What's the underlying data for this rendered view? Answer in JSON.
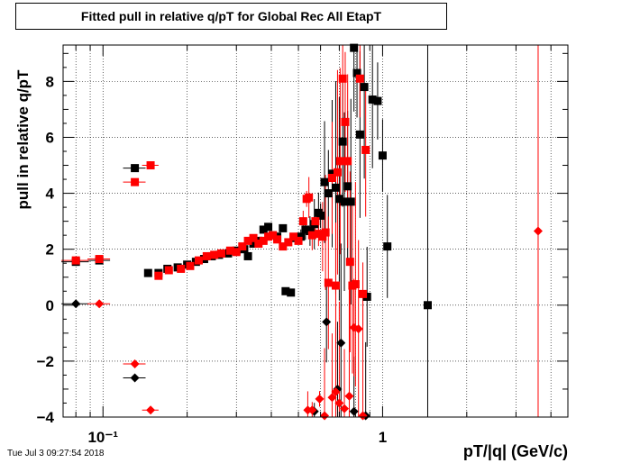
{
  "chart_data": {
    "type": "scatter",
    "title": "Fitted pull in relative q/pT for Global Rec All EtapT",
    "xlabel": "pT/|q| (GeV/c)",
    "ylabel": "pull in relative q/pT",
    "x_scale": "log",
    "xlim": [
      0.072,
      4.6
    ],
    "ylim": [
      -4,
      9.3
    ],
    "grid": true,
    "x_tick_labels": [
      "10⁻¹",
      "1"
    ],
    "y_tick_labels": [
      "−4",
      "−2",
      "0",
      "2",
      "4",
      "6",
      "8"
    ],
    "y_ticks": [
      -4,
      -2,
      0,
      2,
      4,
      6,
      8
    ],
    "series": [
      {
        "marker": "square",
        "color": "#000000",
        "points": [
          {
            "x": 0.08,
            "y": 1.55,
            "xerr": 0.009
          },
          {
            "x": 0.097,
            "y": 1.6,
            "xerr": 0.009
          },
          {
            "x": 0.13,
            "y": 4.9,
            "xerr": 0.012
          },
          {
            "x": 0.145,
            "y": 1.15
          },
          {
            "x": 0.158,
            "y": 1.15
          },
          {
            "x": 0.17,
            "y": 1.3
          },
          {
            "x": 0.185,
            "y": 1.35
          },
          {
            "x": 0.2,
            "y": 1.45
          },
          {
            "x": 0.215,
            "y": 1.55
          },
          {
            "x": 0.23,
            "y": 1.65
          },
          {
            "x": 0.245,
            "y": 1.75
          },
          {
            "x": 0.26,
            "y": 1.8
          },
          {
            "x": 0.28,
            "y": 1.85
          },
          {
            "x": 0.3,
            "y": 1.95
          },
          {
            "x": 0.32,
            "y": 2.0
          },
          {
            "x": 0.33,
            "y": 1.75
          },
          {
            "x": 0.345,
            "y": 2.2
          },
          {
            "x": 0.36,
            "y": 2.3
          },
          {
            "x": 0.375,
            "y": 2.7
          },
          {
            "x": 0.39,
            "y": 2.8
          },
          {
            "x": 0.405,
            "y": 2.5
          },
          {
            "x": 0.42,
            "y": 2.45
          },
          {
            "x": 0.44,
            "y": 2.75
          },
          {
            "x": 0.45,
            "y": 0.5
          },
          {
            "x": 0.47,
            "y": 0.45
          },
          {
            "x": 0.49,
            "y": 2.4
          },
          {
            "x": 0.51,
            "y": 2.45
          },
          {
            "x": 0.53,
            "y": 2.7
          },
          {
            "x": 0.55,
            "y": 2.65
          },
          {
            "x": 0.57,
            "y": 2.9
          },
          {
            "x": 0.59,
            "y": 3.3
          },
          {
            "x": 0.6,
            "y": 3.2
          },
          {
            "x": 0.62,
            "y": 4.4
          },
          {
            "x": 0.64,
            "y": 4.0
          },
          {
            "x": 0.66,
            "y": 4.7
          },
          {
            "x": 0.68,
            "y": 4.2
          },
          {
            "x": 0.7,
            "y": 3.8
          },
          {
            "x": 0.72,
            "y": 5.85
          },
          {
            "x": 0.73,
            "y": 3.7
          },
          {
            "x": 0.75,
            "y": 4.25
          },
          {
            "x": 0.77,
            "y": 3.7
          },
          {
            "x": 0.79,
            "y": 9.2
          },
          {
            "x": 0.81,
            "y": 8.3
          },
          {
            "x": 0.83,
            "y": 6.1
          },
          {
            "x": 0.86,
            "y": 7.8
          },
          {
            "x": 0.88,
            "y": 0.3
          },
          {
            "x": 0.92,
            "y": 7.35
          },
          {
            "x": 0.96,
            "y": 7.3
          },
          {
            "x": 1.0,
            "y": 5.35
          },
          {
            "x": 1.04,
            "y": 2.1
          },
          {
            "x": 1.45,
            "y": 0.0
          }
        ]
      },
      {
        "marker": "square",
        "color": "#ff0000",
        "points": [
          {
            "x": 0.08,
            "y": 1.6,
            "xerr": 0.009
          },
          {
            "x": 0.097,
            "y": 1.65,
            "xerr": 0.009
          },
          {
            "x": 0.13,
            "y": 4.4,
            "xerr": 0.012
          },
          {
            "x": 0.148,
            "y": 5.0,
            "xerr": 0.01
          },
          {
            "x": 0.158,
            "y": 1.05
          },
          {
            "x": 0.172,
            "y": 1.25
          },
          {
            "x": 0.19,
            "y": 1.3
          },
          {
            "x": 0.205,
            "y": 1.4
          },
          {
            "x": 0.22,
            "y": 1.6
          },
          {
            "x": 0.235,
            "y": 1.75
          },
          {
            "x": 0.25,
            "y": 1.8
          },
          {
            "x": 0.265,
            "y": 1.85
          },
          {
            "x": 0.285,
            "y": 1.95
          },
          {
            "x": 0.3,
            "y": 1.9
          },
          {
            "x": 0.315,
            "y": 2.1
          },
          {
            "x": 0.33,
            "y": 2.3
          },
          {
            "x": 0.345,
            "y": 2.4
          },
          {
            "x": 0.36,
            "y": 2.2
          },
          {
            "x": 0.375,
            "y": 2.3
          },
          {
            "x": 0.39,
            "y": 2.45
          },
          {
            "x": 0.405,
            "y": 2.5
          },
          {
            "x": 0.42,
            "y": 2.35
          },
          {
            "x": 0.44,
            "y": 2.1
          },
          {
            "x": 0.46,
            "y": 2.25
          },
          {
            "x": 0.48,
            "y": 2.45
          },
          {
            "x": 0.5,
            "y": 2.3
          },
          {
            "x": 0.52,
            "y": 3.0
          },
          {
            "x": 0.535,
            "y": 3.8
          },
          {
            "x": 0.545,
            "y": 3.85
          },
          {
            "x": 0.56,
            "y": 2.5
          },
          {
            "x": 0.575,
            "y": 3.0
          },
          {
            "x": 0.59,
            "y": 2.55
          },
          {
            "x": 0.61,
            "y": 2.45
          },
          {
            "x": 0.625,
            "y": 2.6
          },
          {
            "x": 0.64,
            "y": 0.8
          },
          {
            "x": 0.66,
            "y": 4.55
          },
          {
            "x": 0.68,
            "y": 0.7
          },
          {
            "x": 0.69,
            "y": 4.75
          },
          {
            "x": 0.705,
            "y": 5.15
          },
          {
            "x": 0.72,
            "y": 8.1
          },
          {
            "x": 0.735,
            "y": 6.55
          },
          {
            "x": 0.75,
            "y": 5.15
          },
          {
            "x": 0.765,
            "y": 1.55
          },
          {
            "x": 0.78,
            "y": 0.7
          },
          {
            "x": 0.8,
            "y": 0.75
          },
          {
            "x": 0.83,
            "y": 8.1
          },
          {
            "x": 0.85,
            "y": 0.4
          },
          {
            "x": 0.87,
            "y": 5.55
          }
        ]
      },
      {
        "marker": "diamond",
        "color": "#000000",
        "points": [
          {
            "x": 0.08,
            "y": 0.05,
            "xerr": 0.009
          },
          {
            "x": 0.13,
            "y": -2.6,
            "xerr": 0.012
          },
          {
            "x": 0.57,
            "y": -3.8
          },
          {
            "x": 0.63,
            "y": -0.6
          },
          {
            "x": 0.69,
            "y": -3.0
          },
          {
            "x": 0.71,
            "y": -1.35
          },
          {
            "x": 0.79,
            "y": -3.8
          },
          {
            "x": 0.87,
            "y": -3.95
          }
        ]
      },
      {
        "marker": "diamond",
        "color": "#ff0000",
        "points": [
          {
            "x": 0.097,
            "y": 0.05,
            "xerr": 0.009
          },
          {
            "x": 0.13,
            "y": -2.1,
            "xerr": 0.012
          },
          {
            "x": 0.148,
            "y": -3.75,
            "xerr": 0.01
          },
          {
            "x": 0.54,
            "y": -3.75
          },
          {
            "x": 0.56,
            "y": -3.75
          },
          {
            "x": 0.595,
            "y": -3.35
          },
          {
            "x": 0.62,
            "y": -3.95
          },
          {
            "x": 0.66,
            "y": -3.3
          },
          {
            "x": 0.68,
            "y": -3.1
          },
          {
            "x": 0.7,
            "y": -3.5
          },
          {
            "x": 0.73,
            "y": -3.7
          },
          {
            "x": 0.76,
            "y": -3.25
          },
          {
            "x": 0.79,
            "y": -0.8
          },
          {
            "x": 0.82,
            "y": -0.85
          },
          {
            "x": 0.85,
            "y": -3.95
          },
          {
            "x": 3.6,
            "y": 2.65
          }
        ]
      }
    ]
  },
  "footer": {
    "timestamp": "Tue Jul  3 09:27:54 2018"
  }
}
